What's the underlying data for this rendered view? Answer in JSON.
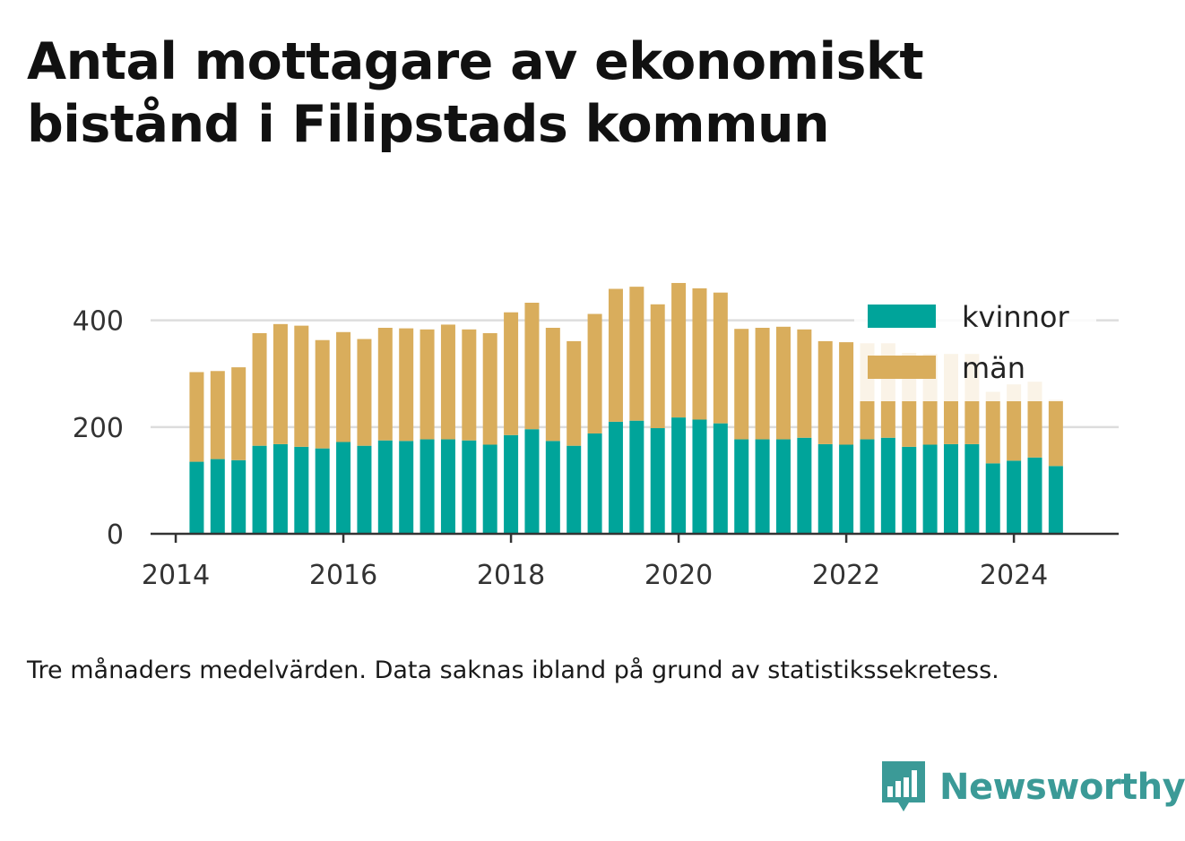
{
  "title": "Antal mottagare av ekonomiskt bistånd i Filipstads kommun",
  "note": "Tre månaders medelvärden. Data saknas ibland på grund av statistikssekretess.",
  "brand": {
    "name": "Newsworthy",
    "logo_icon": "bar-chart-speech-bubble-icon"
  },
  "colors": {
    "kvinnor": "#00a49a",
    "man": "#d9ad5c",
    "grid": "#dddddd",
    "axis": "#333333"
  },
  "chart_data": {
    "type": "bar",
    "stacked": true,
    "x_unit": "year (quarterly bars)",
    "x": [
      2014.25,
      2014.5,
      2014.75,
      2015.0,
      2015.25,
      2015.5,
      2015.75,
      2016.0,
      2016.25,
      2016.5,
      2016.75,
      2017.0,
      2017.25,
      2017.5,
      2017.75,
      2018.0,
      2018.25,
      2018.5,
      2018.75,
      2019.0,
      2019.25,
      2019.5,
      2019.75,
      2020.0,
      2020.25,
      2020.5,
      2020.75,
      2021.0,
      2021.25,
      2021.5,
      2021.75,
      2022.0,
      2022.25,
      2022.5,
      2022.75,
      2023.0,
      2023.25,
      2023.5,
      2023.75,
      2024.0,
      2024.25,
      2024.5
    ],
    "series": [
      {
        "name": "kvinnor",
        "values": [
          135,
          140,
          138,
          165,
          168,
          163,
          160,
          172,
          165,
          175,
          174,
          177,
          177,
          175,
          167,
          185,
          196,
          174,
          165,
          188,
          210,
          212,
          198,
          218,
          214,
          207,
          177,
          177,
          177,
          180,
          168,
          167,
          177,
          180,
          163,
          167,
          168,
          168,
          132,
          137,
          143,
          127
        ]
      },
      {
        "name": "män",
        "values": [
          168,
          165,
          174,
          211,
          225,
          227,
          203,
          206,
          200,
          211,
          211,
          206,
          215,
          208,
          209,
          230,
          237,
          212,
          196,
          224,
          249,
          251,
          232,
          252,
          246,
          245,
          207,
          209,
          211,
          203,
          193,
          192,
          180,
          177,
          176,
          170,
          169,
          169,
          134,
          143,
          142,
          124
        ]
      }
    ],
    "legend": [
      "kvinnor",
      "män"
    ],
    "legend_position": "top-right",
    "xlim": [
      2013.7,
      2025.25
    ],
    "ylim": [
      0,
      480
    ],
    "yticks": [
      0,
      200,
      400
    ],
    "xticks": [
      2014,
      2016,
      2018,
      2020,
      2022,
      2024
    ],
    "grid": "horizontal",
    "xlabel": "",
    "ylabel": ""
  }
}
